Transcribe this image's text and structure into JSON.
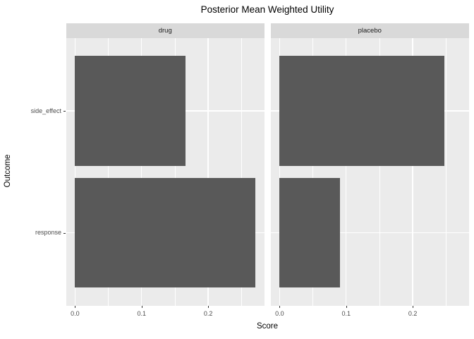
{
  "chart_data": {
    "type": "bar",
    "orientation": "horizontal",
    "title": "Posterior Mean Weighted Utility",
    "xlabel": "Score",
    "ylabel": "Outcome",
    "categories": [
      "side_effect",
      "response"
    ],
    "facets": [
      {
        "label": "drug",
        "values": [
          0.166,
          0.271
        ]
      },
      {
        "label": "placebo",
        "values": [
          0.248,
          0.091
        ]
      }
    ],
    "x_major_ticks": [
      0.0,
      0.1,
      0.2
    ],
    "x_major_tick_labels": [
      "0.0",
      "0.1",
      "0.2"
    ],
    "x_minor_ticks": [
      0.05,
      0.15,
      0.25
    ],
    "xlim": [
      -0.0136,
      0.2846
    ],
    "legend_position": "none",
    "grid": "white major and minor gridlines on gray panel",
    "colors": {
      "bar_fill": "#595959",
      "panel_background": "#EBEBEB",
      "strip_background": "#D9D9D9",
      "grid_line": "#FFFFFF",
      "tick_label": "#4D4D4D",
      "tick_mark": "#333333",
      "title": "#000000",
      "axis_title": "#000000"
    }
  }
}
